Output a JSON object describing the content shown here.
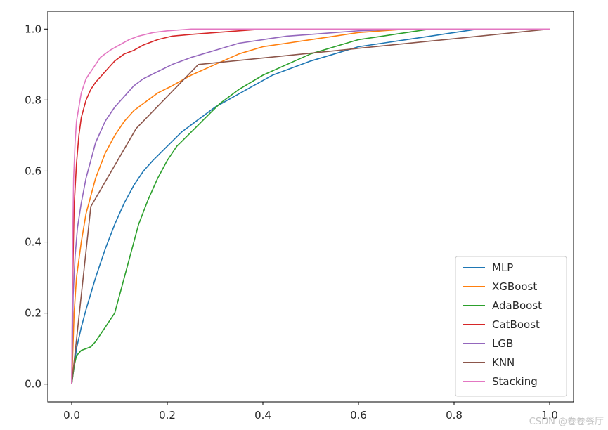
{
  "chart_data": {
    "type": "line",
    "title": "",
    "xlabel": "",
    "ylabel": "",
    "xlim": [
      -0.05,
      1.05
    ],
    "ylim": [
      -0.05,
      1.05
    ],
    "x_ticks": [
      0.0,
      0.2,
      0.4,
      0.6,
      0.8,
      1.0
    ],
    "x_tick_labels": [
      "0.0",
      "0.2",
      "0.4",
      "0.6",
      "0.8",
      "1.0"
    ],
    "y_ticks": [
      0.0,
      0.2,
      0.4,
      0.6,
      0.8,
      1.0
    ],
    "y_tick_labels": [
      "0.0",
      "0.2",
      "0.4",
      "0.6",
      "0.8",
      "1.0"
    ],
    "grid": false,
    "legend_position": "lower-right",
    "series": [
      {
        "name": "MLP",
        "color": "#1f77b4",
        "x": [
          0,
          0.005,
          0.01,
          0.02,
          0.03,
          0.05,
          0.07,
          0.09,
          0.11,
          0.13,
          0.15,
          0.17,
          0.2,
          0.23,
          0.26,
          0.3,
          0.34,
          0.38,
          0.42,
          0.46,
          0.5,
          0.55,
          0.6,
          0.65,
          0.7,
          0.75,
          0.8,
          0.85,
          0.9,
          1.0
        ],
        "y": [
          0,
          0.05,
          0.1,
          0.16,
          0.21,
          0.3,
          0.38,
          0.45,
          0.51,
          0.56,
          0.6,
          0.63,
          0.67,
          0.71,
          0.74,
          0.78,
          0.81,
          0.84,
          0.87,
          0.89,
          0.91,
          0.93,
          0.95,
          0.96,
          0.97,
          0.98,
          0.99,
          1.0,
          1.0,
          1.0
        ]
      },
      {
        "name": "XGBoost",
        "color": "#ff7f0e",
        "x": [
          0,
          0.005,
          0.01,
          0.02,
          0.03,
          0.05,
          0.07,
          0.09,
          0.11,
          0.13,
          0.15,
          0.18,
          0.21,
          0.25,
          0.3,
          0.35,
          0.4,
          0.45,
          0.5,
          0.55,
          0.6,
          0.65,
          0.7,
          0.8,
          1.0
        ],
        "y": [
          0,
          0.2,
          0.3,
          0.4,
          0.48,
          0.58,
          0.65,
          0.7,
          0.74,
          0.77,
          0.79,
          0.82,
          0.84,
          0.87,
          0.9,
          0.93,
          0.95,
          0.96,
          0.97,
          0.98,
          0.99,
          0.995,
          1.0,
          1.0,
          1.0
        ]
      },
      {
        "name": "AdaBoost",
        "color": "#2ca02c",
        "x": [
          0,
          0.005,
          0.01,
          0.02,
          0.03,
          0.04,
          0.05,
          0.06,
          0.07,
          0.08,
          0.09,
          0.1,
          0.12,
          0.14,
          0.16,
          0.18,
          0.2,
          0.22,
          0.25,
          0.28,
          0.31,
          0.35,
          0.4,
          0.45,
          0.5,
          0.55,
          0.6,
          0.65,
          0.7,
          0.75,
          0.8,
          1.0
        ],
        "y": [
          0,
          0.05,
          0.08,
          0.095,
          0.1,
          0.105,
          0.12,
          0.14,
          0.16,
          0.18,
          0.2,
          0.25,
          0.35,
          0.45,
          0.52,
          0.58,
          0.63,
          0.67,
          0.71,
          0.75,
          0.79,
          0.83,
          0.87,
          0.9,
          0.93,
          0.95,
          0.97,
          0.98,
          0.99,
          1.0,
          1.0,
          1.0
        ]
      },
      {
        "name": "CatBoost",
        "color": "#d62728",
        "x": [
          0,
          0.002,
          0.005,
          0.01,
          0.015,
          0.02,
          0.03,
          0.04,
          0.05,
          0.07,
          0.09,
          0.11,
          0.13,
          0.15,
          0.18,
          0.21,
          0.25,
          0.3,
          0.35,
          0.4,
          0.5,
          0.7,
          1.0
        ],
        "y": [
          0,
          0.3,
          0.5,
          0.62,
          0.7,
          0.75,
          0.8,
          0.83,
          0.85,
          0.88,
          0.91,
          0.93,
          0.94,
          0.955,
          0.97,
          0.98,
          0.985,
          0.99,
          0.995,
          1.0,
          1.0,
          1.0,
          1.0
        ]
      },
      {
        "name": "LGB",
        "color": "#9467bd",
        "x": [
          0,
          0.003,
          0.007,
          0.012,
          0.02,
          0.03,
          0.04,
          0.05,
          0.07,
          0.09,
          0.11,
          0.13,
          0.15,
          0.18,
          0.21,
          0.25,
          0.3,
          0.35,
          0.4,
          0.45,
          0.5,
          0.55,
          0.6,
          0.7,
          0.8,
          1.0
        ],
        "y": [
          0,
          0.25,
          0.36,
          0.44,
          0.51,
          0.58,
          0.63,
          0.68,
          0.74,
          0.78,
          0.81,
          0.84,
          0.86,
          0.88,
          0.9,
          0.92,
          0.94,
          0.96,
          0.97,
          0.98,
          0.985,
          0.99,
          0.995,
          1.0,
          1.0,
          1.0
        ]
      },
      {
        "name": "KNN",
        "color": "#8c564b",
        "x": [
          0,
          0.04,
          0.135,
          0.265,
          1.0
        ],
        "y": [
          0,
          0.5,
          0.72,
          0.9,
          1.0
        ]
      },
      {
        "name": "Stacking",
        "color": "#e377c2",
        "x": [
          0,
          0.002,
          0.004,
          0.007,
          0.01,
          0.015,
          0.02,
          0.03,
          0.04,
          0.05,
          0.06,
          0.08,
          0.1,
          0.12,
          0.14,
          0.17,
          0.2,
          0.25,
          0.3,
          0.5,
          1.0
        ],
        "y": [
          0,
          0.4,
          0.58,
          0.68,
          0.74,
          0.78,
          0.82,
          0.86,
          0.88,
          0.9,
          0.92,
          0.94,
          0.955,
          0.97,
          0.98,
          0.99,
          0.995,
          1.0,
          1.0,
          1.0,
          1.0
        ]
      }
    ]
  },
  "watermark": "CSDN @卷卷餐厅"
}
